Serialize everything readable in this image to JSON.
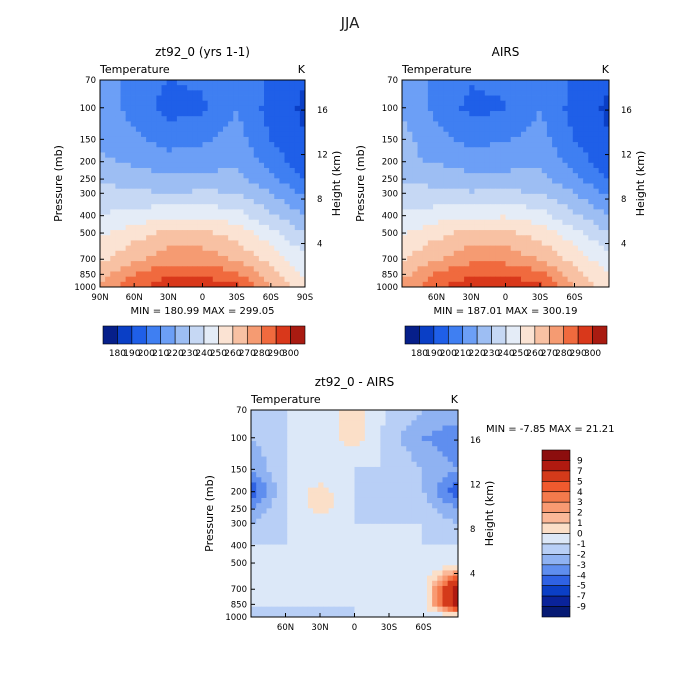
{
  "page_title": "JJA",
  "panels": [
    {
      "title": "zt92_0 (yrs 1-1)",
      "left_label": "Temperature",
      "right_label": "K",
      "stats": "MIN = 180.99   MAX = 299.05"
    },
    {
      "title": "AIRS",
      "left_label": "Temperature",
      "right_label": "K",
      "stats": "MIN = 187.01   MAX = 300.19"
    },
    {
      "title": "zt92_0 - AIRS",
      "left_label": "Temperature",
      "right_label": "K",
      "stats": "MIN =   -7.85   MAX =   21.21"
    }
  ],
  "axes": {
    "ylabel": "Pressure (mb)",
    "y2label": "Height (km)",
    "pressure_ticks": [
      "70",
      "100",
      "150",
      "200",
      "250",
      "300",
      "400",
      "500",
      "700",
      "850",
      "1000"
    ],
    "height_ticks": [
      "16",
      "12",
      "8",
      "4"
    ],
    "lat_ticks_full": [
      "90N",
      "60N",
      "30N",
      "0",
      "30S",
      "60S",
      "90S"
    ],
    "lat_ticks_inner": [
      "60N",
      "30N",
      "0",
      "30S",
      "60S"
    ]
  },
  "colorbars": {
    "temperature": {
      "labels": [
        "180",
        "190",
        "200",
        "210",
        "220",
        "230",
        "240",
        "250",
        "260",
        "270",
        "280",
        "290",
        "300"
      ],
      "colors": [
        "#061f8a",
        "#0a3fc6",
        "#1f5fe8",
        "#3f7ff2",
        "#6c9ff6",
        "#9dbef3",
        "#c6d8f4",
        "#e4ecf7",
        "#fbe3d3",
        "#f8c1a3",
        "#f59b72",
        "#f06a3e",
        "#d9381b",
        "#a91b11"
      ]
    },
    "difference": {
      "labels": [
        "9",
        "7",
        "5",
        "4",
        "3",
        "2",
        "1",
        "0",
        "-1",
        "-2",
        "-3",
        "-4",
        "-5",
        "-7",
        "-9"
      ],
      "colors": [
        "#8c0e0e",
        "#b01a10",
        "#d43a1a",
        "#f05a2e",
        "#f47a4c",
        "#f89a72",
        "#fbb898",
        "#fbdfc8",
        "#dce8f8",
        "#b8cff6",
        "#8fb2f2",
        "#5f8eef",
        "#2f62e4",
        "#0b3fc6",
        "#0a239a",
        "#061a73"
      ]
    }
  },
  "chart_data": [
    {
      "type": "heatmap",
      "title": "zt92_0 (yrs 1-1)",
      "xlabel": "",
      "ylabel": "Pressure (mb)",
      "y2label": "Height (km)",
      "unit": "K",
      "x": [
        90,
        60,
        30,
        0,
        -30,
        -60,
        -90
      ],
      "y": [
        70,
        100,
        150,
        200,
        250,
        300,
        400,
        500,
        700,
        850,
        1000
      ],
      "z": [
        [
          215,
          207,
          200,
          202,
          210,
          198,
          190
        ],
        [
          216,
          206,
          196,
          198,
          210,
          196,
          188
        ],
        [
          218,
          212,
          206,
          208,
          214,
          200,
          190
        ],
        [
          222,
          218,
          214,
          216,
          218,
          206,
          194
        ],
        [
          228,
          225,
          222,
          222,
          224,
          212,
          200
        ],
        [
          234,
          232,
          230,
          232,
          230,
          220,
          208
        ],
        [
          240,
          244,
          248,
          248,
          244,
          232,
          220
        ],
        [
          248,
          256,
          262,
          262,
          256,
          244,
          230
        ],
        [
          258,
          268,
          276,
          276,
          268,
          256,
          242
        ],
        [
          266,
          280,
          288,
          288,
          282,
          264,
          248
        ],
        [
          272,
          288,
          296,
          298,
          292,
          270,
          252
        ]
      ],
      "min": 180.99,
      "max": 299.05
    },
    {
      "type": "heatmap",
      "title": "AIRS",
      "xlabel": "",
      "ylabel": "Pressure (mb)",
      "y2label": "Height (km)",
      "unit": "K",
      "x": [
        90,
        60,
        30,
        0,
        -30,
        -60,
        -90
      ],
      "y": [
        70,
        100,
        150,
        200,
        250,
        300,
        400,
        500,
        700,
        850,
        1000
      ],
      "z": [
        [
          215,
          208,
          201,
          203,
          210,
          198,
          192
        ],
        [
          218,
          207,
          197,
          199,
          210,
          196,
          188
        ],
        [
          224,
          213,
          207,
          209,
          214,
          200,
          190
        ],
        [
          222,
          219,
          215,
          216,
          219,
          206,
          194
        ],
        [
          229,
          226,
          223,
          223,
          224,
          212,
          200
        ],
        [
          234,
          233,
          231,
          232,
          230,
          220,
          208
        ],
        [
          241,
          245,
          248,
          249,
          244,
          232,
          220
        ],
        [
          249,
          257,
          263,
          262,
          256,
          244,
          230
        ],
        [
          259,
          269,
          277,
          277,
          269,
          256,
          244
        ],
        [
          267,
          281,
          289,
          289,
          283,
          265,
          250
        ],
        [
          273,
          289,
          297,
          299,
          293,
          271,
          252
        ]
      ],
      "min": 187.01,
      "max": 300.19
    },
    {
      "type": "heatmap",
      "title": "zt92_0 - AIRS",
      "xlabel": "",
      "ylabel": "Pressure (mb)",
      "y2label": "Height (km)",
      "unit": "K",
      "x": [
        90,
        60,
        30,
        0,
        -30,
        -60,
        -90
      ],
      "y": [
        70,
        100,
        150,
        200,
        250,
        300,
        400,
        500,
        700,
        850,
        1000
      ],
      "z": [
        [
          -1,
          -1,
          -0.5,
          0.5,
          -1,
          -2,
          -2
        ],
        [
          -2,
          -1,
          -0.5,
          0.5,
          -1.5,
          -3,
          -4
        ],
        [
          -3,
          -1,
          -1,
          -1,
          -1,
          -2,
          -3
        ],
        [
          -5,
          -1,
          0.5,
          -1,
          -2,
          -2,
          -5
        ],
        [
          -3,
          -1,
          0.5,
          -1,
          -2,
          -1.5,
          -3
        ],
        [
          -2,
          -1,
          -1,
          -1,
          -1,
          -1,
          -2
        ],
        [
          -1,
          -1,
          -1,
          -1,
          -1,
          -1,
          -1
        ],
        [
          -1,
          -1,
          -1,
          -1,
          -1,
          -1,
          -1
        ],
        [
          -1,
          -1,
          -1,
          -1,
          -1,
          -1,
          9
        ],
        [
          -1,
          -1,
          -1,
          -1,
          -1,
          -1,
          9
        ],
        [
          -2,
          -2,
          -2,
          -1,
          -1,
          -1,
          -1
        ]
      ],
      "min": -7.85,
      "max": 21.21
    }
  ]
}
